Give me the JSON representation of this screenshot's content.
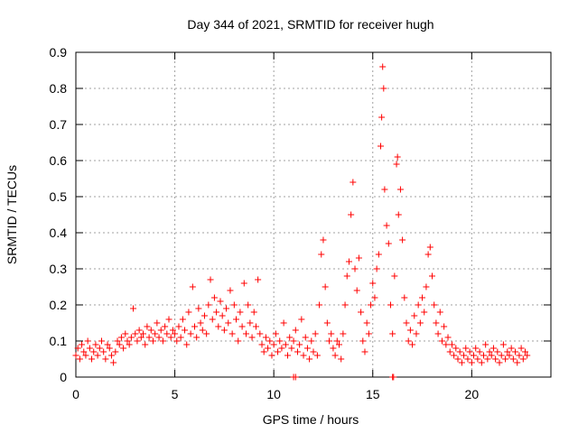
{
  "chart_data": {
    "type": "scatter",
    "title": "Day 344 of 2021, SRMTID for receiver hugh",
    "xlabel": "GPS time / hours",
    "ylabel": "SRMTID / TECUs",
    "xlim": [
      0,
      24
    ],
    "ylim": [
      0,
      0.9
    ],
    "xticks": [
      0,
      5,
      10,
      15,
      20
    ],
    "yticks": [
      0,
      0.1,
      0.2,
      0.3,
      0.4,
      0.5,
      0.6,
      0.7,
      0.8,
      0.9
    ],
    "grid": true,
    "marker": "+",
    "colors": {
      "marker": "#ff0000",
      "grid": "#a0a0a0",
      "axis": "#000000"
    },
    "series": [
      {
        "name": "SRMTID",
        "points": [
          [
            0.0,
            0.06
          ],
          [
            0.1,
            0.08
          ],
          [
            0.2,
            0.05
          ],
          [
            0.3,
            0.09
          ],
          [
            0.4,
            0.07
          ],
          [
            0.5,
            0.06
          ],
          [
            0.6,
            0.1
          ],
          [
            0.7,
            0.08
          ],
          [
            0.8,
            0.05
          ],
          [
            0.9,
            0.07
          ],
          [
            1.0,
            0.09
          ],
          [
            1.1,
            0.06
          ],
          [
            1.2,
            0.08
          ],
          [
            1.3,
            0.1
          ],
          [
            1.4,
            0.07
          ],
          [
            1.5,
            0.05
          ],
          [
            1.6,
            0.09
          ],
          [
            1.7,
            0.08
          ],
          [
            1.8,
            0.06
          ],
          [
            1.9,
            0.04
          ],
          [
            2.0,
            0.07
          ],
          [
            2.1,
            0.1
          ],
          [
            2.2,
            0.09
          ],
          [
            2.3,
            0.11
          ],
          [
            2.4,
            0.08
          ],
          [
            2.5,
            0.12
          ],
          [
            2.6,
            0.1
          ],
          [
            2.7,
            0.09
          ],
          [
            2.8,
            0.11
          ],
          [
            2.9,
            0.19
          ],
          [
            3.0,
            0.12
          ],
          [
            3.1,
            0.1
          ],
          [
            3.2,
            0.13
          ],
          [
            3.3,
            0.11
          ],
          [
            3.4,
            0.12
          ],
          [
            3.5,
            0.09
          ],
          [
            3.6,
            0.14
          ],
          [
            3.7,
            0.11
          ],
          [
            3.8,
            0.13
          ],
          [
            3.9,
            0.1
          ],
          [
            4.0,
            0.12
          ],
          [
            4.1,
            0.15
          ],
          [
            4.2,
            0.11
          ],
          [
            4.3,
            0.13
          ],
          [
            4.4,
            0.1
          ],
          [
            4.5,
            0.14
          ],
          [
            4.6,
            0.12
          ],
          [
            4.7,
            0.16
          ],
          [
            4.8,
            0.11
          ],
          [
            4.9,
            0.13
          ],
          [
            5.0,
            0.12
          ],
          [
            5.1,
            0.1
          ],
          [
            5.2,
            0.14
          ],
          [
            5.3,
            0.11
          ],
          [
            5.4,
            0.16
          ],
          [
            5.5,
            0.13
          ],
          [
            5.6,
            0.09
          ],
          [
            5.7,
            0.18
          ],
          [
            5.8,
            0.12
          ],
          [
            5.9,
            0.25
          ],
          [
            6.0,
            0.14
          ],
          [
            6.1,
            0.11
          ],
          [
            6.2,
            0.19
          ],
          [
            6.3,
            0.15
          ],
          [
            6.4,
            0.13
          ],
          [
            6.5,
            0.17
          ],
          [
            6.6,
            0.12
          ],
          [
            6.7,
            0.2
          ],
          [
            6.8,
            0.27
          ],
          [
            6.9,
            0.16
          ],
          [
            7.0,
            0.22
          ],
          [
            7.1,
            0.18
          ],
          [
            7.2,
            0.14
          ],
          [
            7.3,
            0.21
          ],
          [
            7.4,
            0.17
          ],
          [
            7.5,
            0.13
          ],
          [
            7.6,
            0.19
          ],
          [
            7.7,
            0.15
          ],
          [
            7.8,
            0.24
          ],
          [
            7.9,
            0.12
          ],
          [
            8.0,
            0.2
          ],
          [
            8.1,
            0.16
          ],
          [
            8.2,
            0.1
          ],
          [
            8.3,
            0.18
          ],
          [
            8.4,
            0.14
          ],
          [
            8.5,
            0.26
          ],
          [
            8.6,
            0.12
          ],
          [
            8.7,
            0.2
          ],
          [
            8.8,
            0.15
          ],
          [
            8.9,
            0.11
          ],
          [
            9.0,
            0.18
          ],
          [
            9.1,
            0.14
          ],
          [
            9.2,
            0.27
          ],
          [
            9.3,
            0.12
          ],
          [
            9.4,
            0.09
          ],
          [
            9.5,
            0.07
          ],
          [
            9.6,
            0.11
          ],
          [
            9.7,
            0.08
          ],
          [
            9.8,
            0.1
          ],
          [
            9.9,
            0.06
          ],
          [
            10.0,
            0.09
          ],
          [
            10.1,
            0.12
          ],
          [
            10.2,
            0.07
          ],
          [
            10.3,
            0.1
          ],
          [
            10.4,
            0.08
          ],
          [
            10.5,
            0.15
          ],
          [
            10.6,
            0.09
          ],
          [
            10.7,
            0.06
          ],
          [
            10.8,
            0.11
          ],
          [
            10.9,
            0.08
          ],
          [
            11.0,
            0.1
          ],
          [
            11.1,
            0.13
          ],
          [
            11.2,
            0.07
          ],
          [
            11.3,
            0.09
          ],
          [
            11.4,
            0.16
          ],
          [
            11.5,
            0.06
          ],
          [
            11.6,
            0.11
          ],
          [
            11.7,
            0.08
          ],
          [
            11.8,
            0.05
          ],
          [
            11.9,
            0.1
          ],
          [
            12.0,
            0.07
          ],
          [
            12.1,
            0.12
          ],
          [
            12.2,
            0.06
          ],
          [
            12.3,
            0.2
          ],
          [
            12.4,
            0.34
          ],
          [
            12.5,
            0.38
          ],
          [
            12.6,
            0.25
          ],
          [
            12.7,
            0.15
          ],
          [
            12.8,
            0.1
          ],
          [
            12.9,
            0.12
          ],
          [
            13.0,
            0.08
          ],
          [
            13.1,
            0.06
          ],
          [
            13.2,
            0.1
          ],
          [
            13.3,
            0.09
          ],
          [
            13.4,
            0.05
          ],
          [
            13.5,
            0.12
          ],
          [
            13.6,
            0.2
          ],
          [
            13.7,
            0.28
          ],
          [
            13.8,
            0.32
          ],
          [
            13.9,
            0.45
          ],
          [
            14.0,
            0.54
          ],
          [
            14.1,
            0.3
          ],
          [
            14.2,
            0.24
          ],
          [
            14.3,
            0.33
          ],
          [
            14.4,
            0.18
          ],
          [
            14.5,
            0.1
          ],
          [
            14.6,
            0.07
          ],
          [
            14.7,
            0.15
          ],
          [
            14.8,
            0.12
          ],
          [
            14.9,
            0.2
          ],
          [
            15.0,
            0.26
          ],
          [
            15.1,
            0.22
          ],
          [
            15.2,
            0.3
          ],
          [
            15.3,
            0.34
          ],
          [
            15.4,
            0.64
          ],
          [
            15.45,
            0.72
          ],
          [
            15.5,
            0.86
          ],
          [
            15.55,
            0.8
          ],
          [
            15.6,
            0.52
          ],
          [
            15.7,
            0.42
          ],
          [
            15.8,
            0.37
          ],
          [
            15.9,
            0.2
          ],
          [
            16.0,
            0.12
          ],
          [
            16.1,
            0.28
          ],
          [
            16.2,
            0.59
          ],
          [
            16.25,
            0.61
          ],
          [
            16.3,
            0.45
          ],
          [
            16.4,
            0.52
          ],
          [
            16.5,
            0.38
          ],
          [
            16.6,
            0.22
          ],
          [
            16.7,
            0.15
          ],
          [
            16.8,
            0.1
          ],
          [
            16.9,
            0.13
          ],
          [
            17.0,
            0.09
          ],
          [
            17.1,
            0.17
          ],
          [
            17.2,
            0.12
          ],
          [
            17.3,
            0.2
          ],
          [
            17.4,
            0.15
          ],
          [
            17.5,
            0.22
          ],
          [
            17.6,
            0.18
          ],
          [
            17.7,
            0.25
          ],
          [
            17.8,
            0.34
          ],
          [
            17.9,
            0.36
          ],
          [
            18.0,
            0.28
          ],
          [
            18.1,
            0.2
          ],
          [
            18.2,
            0.15
          ],
          [
            18.3,
            0.12
          ],
          [
            18.4,
            0.18
          ],
          [
            18.5,
            0.1
          ],
          [
            18.6,
            0.14
          ],
          [
            18.7,
            0.09
          ],
          [
            18.8,
            0.11
          ],
          [
            18.9,
            0.07
          ],
          [
            19.0,
            0.09
          ],
          [
            19.1,
            0.06
          ],
          [
            19.2,
            0.08
          ],
          [
            19.3,
            0.05
          ],
          [
            19.4,
            0.07
          ],
          [
            19.5,
            0.04
          ],
          [
            19.6,
            0.06
          ],
          [
            19.7,
            0.08
          ],
          [
            19.8,
            0.05
          ],
          [
            19.9,
            0.07
          ],
          [
            20.0,
            0.04
          ],
          [
            20.1,
            0.06
          ],
          [
            20.2,
            0.08
          ],
          [
            20.3,
            0.05
          ],
          [
            20.4,
            0.07
          ],
          [
            20.5,
            0.04
          ],
          [
            20.6,
            0.06
          ],
          [
            20.7,
            0.09
          ],
          [
            20.8,
            0.05
          ],
          [
            20.9,
            0.07
          ],
          [
            21.0,
            0.06
          ],
          [
            21.1,
            0.08
          ],
          [
            21.2,
            0.05
          ],
          [
            21.3,
            0.07
          ],
          [
            21.4,
            0.04
          ],
          [
            21.5,
            0.06
          ],
          [
            21.6,
            0.09
          ],
          [
            21.7,
            0.05
          ],
          [
            21.8,
            0.07
          ],
          [
            21.9,
            0.06
          ],
          [
            22.0,
            0.08
          ],
          [
            22.1,
            0.05
          ],
          [
            22.2,
            0.07
          ],
          [
            22.3,
            0.04
          ],
          [
            22.4,
            0.06
          ],
          [
            22.5,
            0.08
          ],
          [
            22.6,
            0.05
          ],
          [
            22.7,
            0.07
          ],
          [
            22.8,
            0.06
          ],
          [
            11.0,
            0.0
          ],
          [
            11.1,
            0.0
          ],
          [
            16.0,
            0.0
          ],
          [
            16.05,
            0.0
          ]
        ]
      }
    ]
  }
}
